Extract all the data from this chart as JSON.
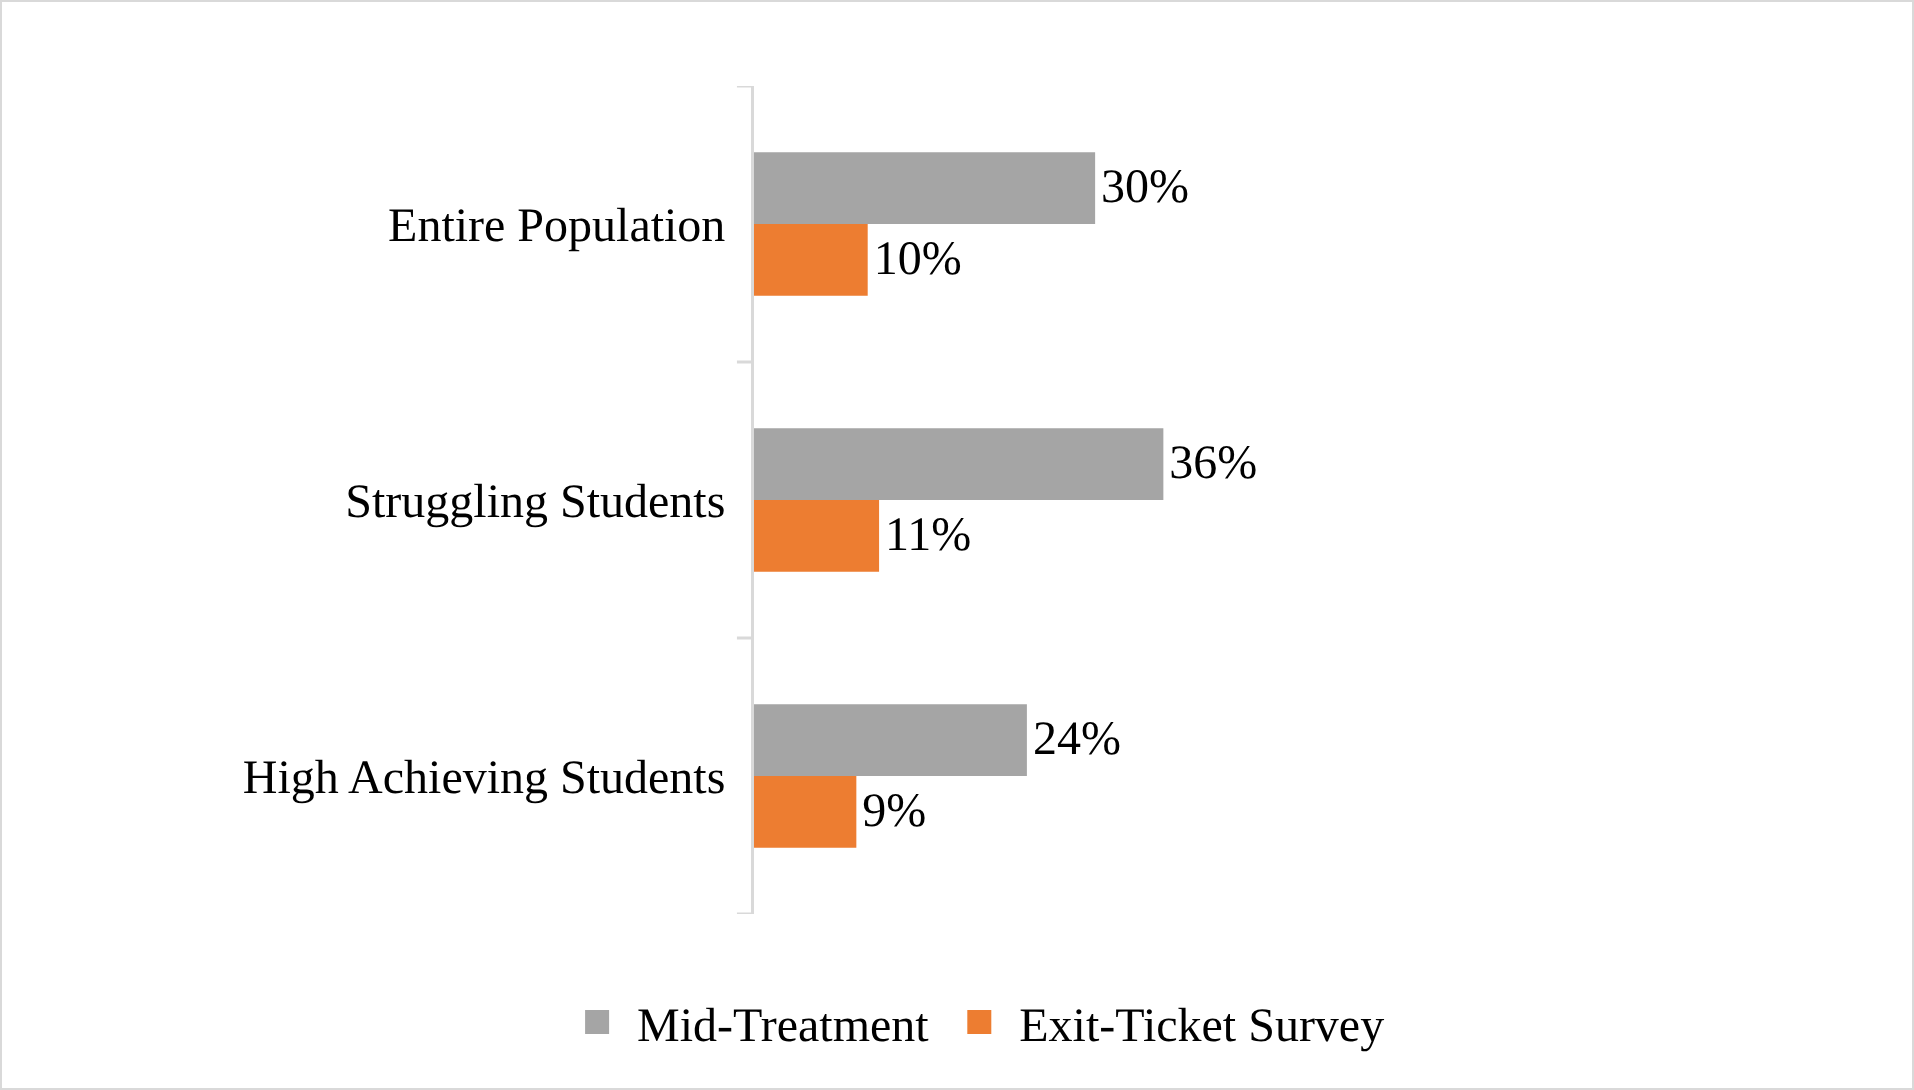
{
  "chart_data": {
    "type": "bar",
    "orientation": "horizontal",
    "categories": [
      "Entire Population",
      "Struggling Students",
      "High Achieving Students"
    ],
    "series": [
      {
        "name": "Mid-Treatment",
        "color": "#a5a5a5",
        "values": [
          30,
          36,
          24
        ],
        "value_labels": [
          "30%",
          "36%",
          "24%"
        ]
      },
      {
        "name": "Exit-Ticket Survey",
        "color": "#ed7d31",
        "values": [
          10,
          11,
          9
        ],
        "value_labels": [
          "10%",
          "11%",
          "9%"
        ]
      }
    ],
    "legend": "bottom"
  }
}
